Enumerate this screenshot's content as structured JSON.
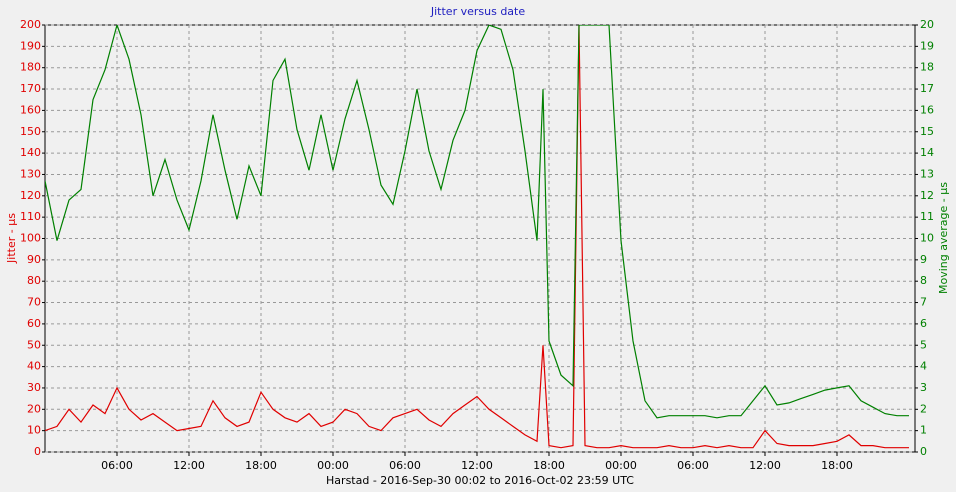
{
  "chart_data": {
    "type": "line",
    "title": "Jitter versus date",
    "y_label": "Jitter - µs",
    "y2_label": "Moving average - µs",
    "x_label": "Harstad  -  2016-Sep-30 00:02 to 2016-Oct-02 23:59 UTC",
    "x": [
      0,
      1,
      2,
      3,
      4,
      5,
      6,
      7,
      8,
      9,
      10,
      11,
      12,
      13,
      14,
      15,
      16,
      17,
      18,
      19,
      20,
      21,
      22,
      23,
      24,
      25,
      26,
      27,
      28,
      29,
      30,
      31,
      32,
      33,
      34,
      35,
      36,
      37,
      38,
      39,
      40,
      41,
      41.5,
      42,
      43,
      44,
      44.5,
      45,
      46,
      47,
      48,
      49,
      50,
      51,
      52,
      53,
      54,
      55,
      56,
      57,
      58,
      59,
      60,
      61,
      62,
      63,
      64,
      65,
      66,
      67,
      68,
      69,
      70,
      71,
      72
    ],
    "series": [
      {
        "name": "Jitter",
        "color": "#e00000",
        "values": [
          10,
          12,
          20,
          14,
          22,
          18,
          30,
          20,
          15,
          18,
          14,
          10,
          11,
          12,
          24,
          16,
          12,
          14,
          28,
          20,
          16,
          14,
          18,
          12,
          14,
          20,
          18,
          12,
          10,
          16,
          18,
          20,
          15,
          12,
          18,
          22,
          26,
          20,
          16,
          12,
          8,
          5,
          50,
          3,
          2,
          3,
          200,
          3,
          2,
          2,
          3,
          2,
          2,
          2,
          3,
          2,
          2,
          3,
          2,
          3,
          2,
          2,
          10,
          4,
          3,
          3,
          3,
          4,
          5,
          8,
          3,
          3,
          2,
          2,
          2
        ]
      },
      {
        "name": "Moving average",
        "color": "#008000",
        "axis": "y2",
        "values": [
          12.7,
          9.9,
          11.8,
          12.3,
          16.5,
          17.9,
          20,
          18.4,
          15.8,
          12,
          13.7,
          11.8,
          10.4,
          12.7,
          15.8,
          13.2,
          10.9,
          13.4,
          12,
          17.4,
          18.4,
          15.1,
          13.2,
          15.8,
          13.2,
          15.6,
          17.4,
          15.1,
          12.5,
          11.6,
          14.1,
          17,
          14.1,
          12.3,
          14.6,
          16,
          18.8,
          20,
          19.8,
          17.9,
          14.1,
          9.9,
          17,
          5.2,
          3.6,
          3.1,
          20,
          20,
          20,
          20,
          9.9,
          5.2,
          2.4,
          1.6,
          1.7,
          1.7,
          1.7,
          1.7,
          1.6,
          1.7,
          1.7,
          2.4,
          3.1,
          2.2,
          2.3,
          2.5,
          2.7,
          2.9,
          3,
          3.1,
          2.4,
          2.1,
          1.8,
          1.7,
          1.7
        ]
      }
    ],
    "xlim": [
      0,
      72.5
    ],
    "xticks": [
      {
        "value": 6,
        "label": "06:00"
      },
      {
        "value": 12,
        "label": "12:00"
      },
      {
        "value": 18,
        "label": "18:00"
      },
      {
        "value": 24,
        "label": "00:00"
      },
      {
        "value": 30,
        "label": "06:00"
      },
      {
        "value": 36,
        "label": "12:00"
      },
      {
        "value": 42,
        "label": "18:00"
      },
      {
        "value": 48,
        "label": "00:00"
      },
      {
        "value": 54,
        "label": "06:00"
      },
      {
        "value": 60,
        "label": "12:00"
      },
      {
        "value": 66,
        "label": "18:00"
      }
    ],
    "ylim": [
      0,
      200
    ],
    "yticks": [
      0,
      10,
      20,
      30,
      40,
      50,
      60,
      70,
      80,
      90,
      100,
      110,
      120,
      130,
      140,
      150,
      160,
      170,
      180,
      190,
      200
    ],
    "y2lim": [
      0,
      20
    ],
    "y2ticks": [
      0,
      1,
      2,
      3,
      4,
      5,
      6,
      7,
      8,
      9,
      10,
      11,
      12,
      13,
      14,
      15,
      16,
      17,
      18,
      19,
      20
    ],
    "grid": true
  }
}
